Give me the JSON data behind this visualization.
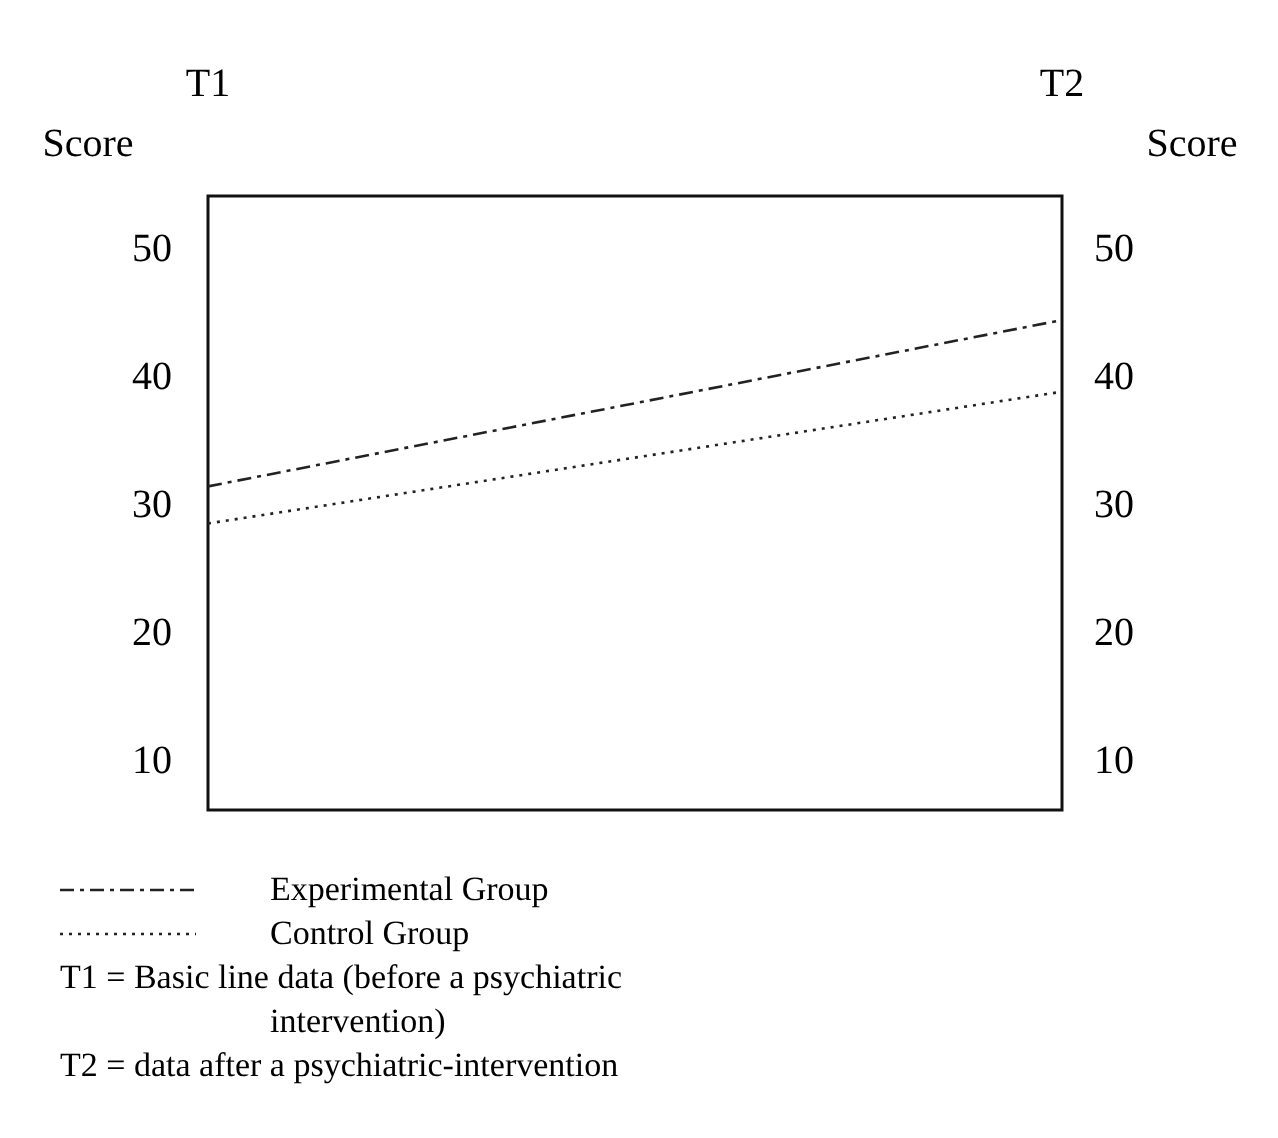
{
  "chart_data": {
    "type": "line",
    "categories": [
      "T1",
      "T2"
    ],
    "ylabel": "Score",
    "y2label": "Score",
    "ylim": [
      6,
      54
    ],
    "yticks": [
      10,
      20,
      30,
      40,
      50
    ],
    "y2lim": [
      6,
      54
    ],
    "y2ticks": [
      10,
      20,
      30,
      40,
      50
    ],
    "series": [
      {
        "name": "Experimental Group",
        "color": "#222222",
        "values": [
          31.3,
          44.3
        ],
        "line_style": "dashed"
      },
      {
        "name": "Control Group",
        "color": "#222222",
        "values": [
          28.4,
          38.7
        ],
        "line_style": "dotted"
      }
    ],
    "legend": "bottom",
    "grid": false,
    "annotations": [
      "T1 = Basic line data (before a psychiatric intervention)",
      "T2 = data after a psychiatric-intervention"
    ]
  }
}
